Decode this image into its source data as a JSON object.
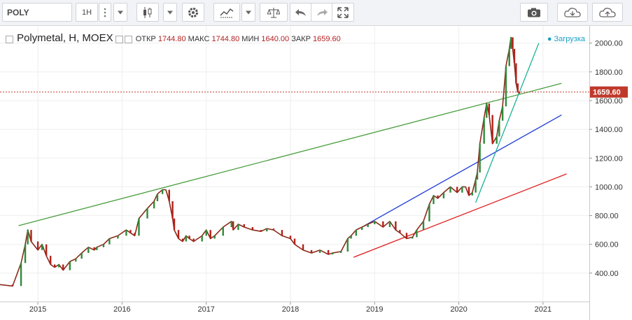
{
  "toolbar": {
    "symbol": "POLY",
    "timeframe": "1H",
    "icons": [
      "candles-icon",
      "settings-icon",
      "indicators-icon",
      "compare-icon",
      "undo-icon",
      "redo-icon",
      "fullscreen-icon",
      "camera-icon",
      "cloud-download-icon",
      "cloud-upload-icon"
    ]
  },
  "legend": {
    "title": "Polymetal, H, MOEX",
    "open_label": "ОТКР",
    "open": "1744.80",
    "high_label": "МАКС",
    "high": "1744.80",
    "low_label": "МИН",
    "low": "1640.00",
    "close_label": "ЗАКР",
    "close": "1659.60"
  },
  "status": "Загрузка",
  "chart_data": {
    "type": "line",
    "title": "Polymetal, H, MOEX",
    "xlim": [
      2014.55,
      2021.55
    ],
    "ylim": [
      200,
      2120
    ],
    "yticks": [
      400,
      600,
      800,
      1000,
      1200,
      1400,
      1600,
      1800,
      2000
    ],
    "ytick_labels": [
      "400.00",
      "600.00",
      "800.00",
      "1000.00",
      "1200.00",
      "1400.00",
      "1600.00",
      "1800.00",
      "2000.00"
    ],
    "xticks": [
      2015,
      2016,
      2017,
      2018,
      2019,
      2020,
      2021
    ],
    "xtick_labels": [
      "2015",
      "2016",
      "2017",
      "2018",
      "2019",
      "2020",
      "2021"
    ],
    "last_price": 1659.6,
    "last_price_label": "1659.60",
    "series": [
      {
        "x": [
          2014.55,
          2014.7,
          2014.8,
          2014.85,
          2014.88,
          2014.92,
          2015.0,
          2015.05,
          2015.1,
          2015.15,
          2015.2,
          2015.25,
          2015.3,
          2015.38,
          2015.45,
          2015.52,
          2015.6,
          2015.67,
          2015.7,
          2015.78,
          2015.85,
          2015.95,
          2016.05,
          2016.1,
          2016.15,
          2016.2,
          2016.3,
          2016.38,
          2016.42,
          2016.48,
          2016.52,
          2016.56,
          2016.6,
          2016.62,
          2016.67,
          2016.72,
          2016.76,
          2016.8,
          2016.85,
          2016.95,
          2017.0,
          2017.05,
          2017.1,
          2017.2,
          2017.3,
          2017.32,
          2017.38,
          2017.45,
          2017.55,
          2017.65,
          2017.72,
          2017.8,
          2017.9,
          2018.0,
          2018.05,
          2018.15,
          2018.25,
          2018.35,
          2018.45,
          2018.5,
          2018.6,
          2018.68,
          2018.72,
          2018.78,
          2018.85,
          2018.92,
          2019.0,
          2019.1,
          2019.18,
          2019.25,
          2019.3,
          2019.38,
          2019.45,
          2019.5,
          2019.58,
          2019.65,
          2019.7,
          2019.75,
          2019.82,
          2019.9,
          2019.98,
          2020.04,
          2020.08,
          2020.12,
          2020.16,
          2020.2,
          2020.22,
          2020.25,
          2020.3,
          2020.33,
          2020.36,
          2020.4,
          2020.45,
          2020.48,
          2020.52,
          2020.56,
          2020.6,
          2020.62,
          2020.64,
          2020.66,
          2020.68,
          2020.7,
          2020.72
        ],
        "y": [
          320,
          310,
          470,
          600,
          700,
          620,
          560,
          600,
          520,
          460,
          440,
          460,
          420,
          480,
          500,
          540,
          580,
          560,
          580,
          600,
          640,
          660,
          700,
          680,
          660,
          780,
          850,
          900,
          950,
          980,
          980,
          900,
          780,
          700,
          640,
          620,
          660,
          640,
          620,
          660,
          700,
          640,
          660,
          720,
          760,
          700,
          740,
          720,
          700,
          690,
          710,
          700,
          660,
          640,
          600,
          560,
          540,
          560,
          530,
          540,
          550,
          640,
          660,
          700,
          720,
          740,
          760,
          720,
          760,
          700,
          680,
          640,
          650,
          700,
          760,
          880,
          940,
          920,
          960,
          1000,
          960,
          1000,
          1000,
          940,
          960,
          1050,
          1100,
          1300,
          1480,
          1580,
          1500,
          1300,
          1350,
          1460,
          1560,
          1840,
          1960,
          2040,
          1960,
          1860,
          1720,
          1660,
          1650
        ]
      }
    ],
    "trendlines": [
      {
        "color": "#4a9e3f",
        "x": [
          2014.77,
          2021.22
        ],
        "y": [
          730,
          1720
        ]
      },
      {
        "color": "#1e3ad6",
        "x": [
          2018.88,
          2021.22
        ],
        "y": [
          730,
          1500
        ]
      },
      {
        "color": "#e02020",
        "x": [
          2018.75,
          2021.28
        ],
        "y": [
          510,
          1090
        ]
      },
      {
        "color": "#1ab394",
        "x": [
          2020.2,
          2020.95
        ],
        "y": [
          890,
          2000
        ]
      }
    ]
  }
}
